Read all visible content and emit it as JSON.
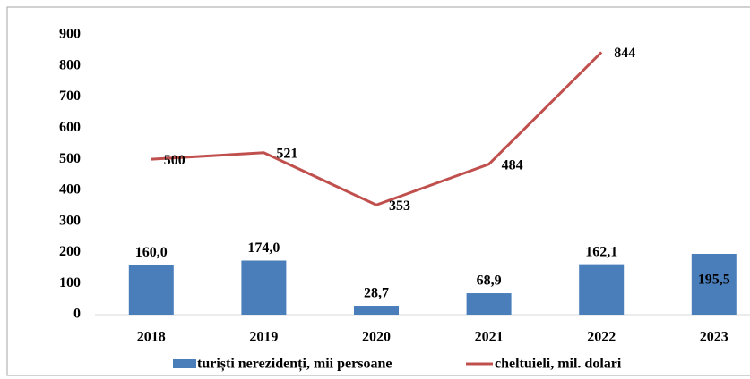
{
  "chart_data": {
    "type": "bar-line",
    "categories": [
      "2018",
      "2019",
      "2020",
      "2021",
      "2022",
      "2023"
    ],
    "series": [
      {
        "name": "turiști nerezidenți, mii persoane",
        "type": "bar",
        "color": "#4a7ebb",
        "values": [
          160.0,
          174.0,
          28.7,
          68.9,
          162.1,
          195.5
        ],
        "value_labels": [
          "160,0",
          "174,0",
          "28,7",
          "68,9",
          "162,1",
          "195,5"
        ]
      },
      {
        "name": "cheltuieli, mil. dolari",
        "type": "line",
        "color": "#c0504d",
        "values": [
          500,
          521,
          353,
          484,
          844,
          null
        ]
      }
    ],
    "ylim": [
      0,
      900
    ],
    "yticks": [
      0,
      100,
      200,
      300,
      400,
      500,
      600,
      700,
      800,
      900
    ],
    "grid": false
  }
}
